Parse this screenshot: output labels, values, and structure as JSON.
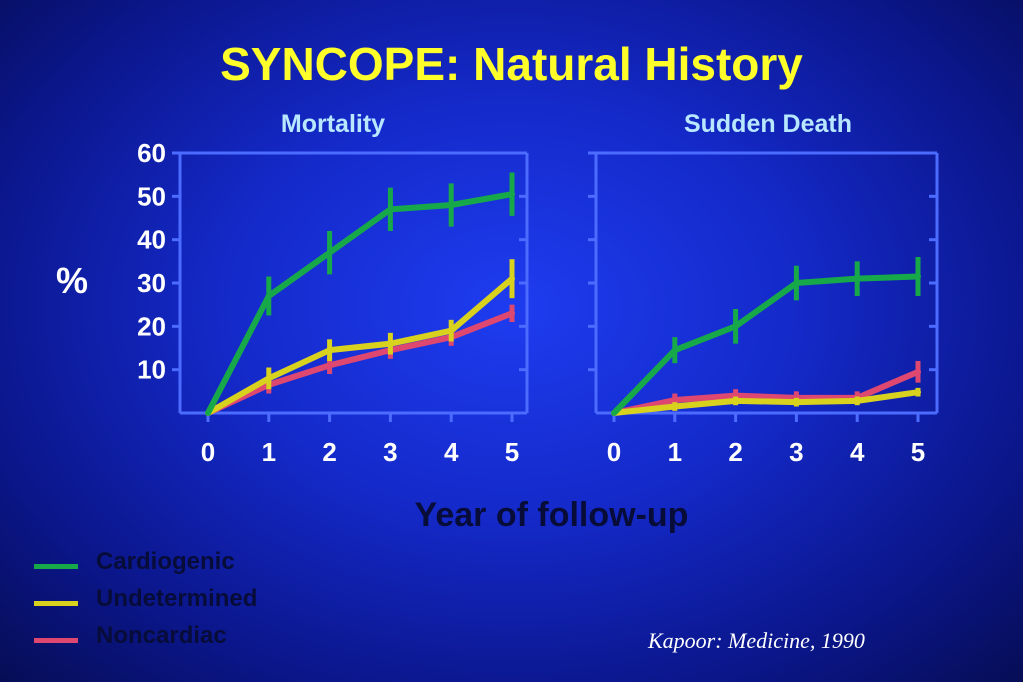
{
  "title": "SYNCOPE:  Natural History",
  "y_axis_label": "%",
  "x_axis_label": "Year of follow-up",
  "citation": "Kapoor:  Medicine, 1990",
  "legend": [
    {
      "name": "Cardiogenic",
      "color": "#17a84a"
    },
    {
      "name": "Undetermined",
      "color": "#d8d21e"
    },
    {
      "name": "Noncardiac",
      "color": "#de4870"
    }
  ],
  "chart_data": [
    {
      "type": "line",
      "title": "Mortality",
      "xlabel": "Year of follow-up",
      "ylabel": "%",
      "x": [
        0,
        1,
        2,
        3,
        4,
        5
      ],
      "x_ticks": [
        "0",
        "1",
        "2",
        "3",
        "4",
        "5"
      ],
      "y_ticks": [
        "10",
        "20",
        "30",
        "40",
        "50",
        "60"
      ],
      "xlim": [
        0,
        5
      ],
      "ylim": [
        0,
        60
      ],
      "grid": false,
      "series": [
        {
          "name": "Cardiogenic",
          "color": "#17a84a",
          "values": [
            0,
            27,
            37,
            47,
            48,
            50.5
          ],
          "error": [
            0,
            4.5,
            5,
            5,
            5,
            5
          ]
        },
        {
          "name": "Undetermined",
          "color": "#d8d21e",
          "values": [
            0,
            8,
            14.5,
            16,
            19,
            31
          ],
          "error": [
            0,
            2.5,
            2.5,
            2.5,
            2.5,
            4.5
          ]
        },
        {
          "name": "Noncardiac",
          "color": "#de4870",
          "values": [
            0,
            6.5,
            11,
            14.5,
            17.5,
            23
          ],
          "error": [
            0,
            2,
            2,
            2,
            2,
            2
          ]
        }
      ]
    },
    {
      "type": "line",
      "title": "Sudden Death",
      "xlabel": "Year of follow-up",
      "ylabel": "%",
      "x": [
        0,
        1,
        2,
        3,
        4,
        5
      ],
      "x_ticks": [
        "0",
        "1",
        "2",
        "3",
        "4",
        "5"
      ],
      "xlim": [
        0,
        5
      ],
      "ylim": [
        0,
        60
      ],
      "grid": false,
      "series": [
        {
          "name": "Cardiogenic",
          "color": "#17a84a",
          "values": [
            0,
            14.5,
            20,
            30,
            31,
            31.5
          ],
          "error": [
            0,
            3,
            4,
            4,
            4,
            4.5
          ]
        },
        {
          "name": "Undetermined",
          "color": "#d8d21e",
          "values": [
            0,
            1.5,
            2.8,
            2.5,
            2.8,
            4.8
          ],
          "error": [
            0,
            1,
            1,
            1,
            1,
            1
          ]
        },
        {
          "name": "Noncardiac",
          "color": "#de4870",
          "values": [
            0,
            3,
            4,
            3.5,
            3.5,
            9.5
          ],
          "error": [
            0,
            1.5,
            1.5,
            1.5,
            1.5,
            2.5
          ]
        }
      ]
    }
  ]
}
